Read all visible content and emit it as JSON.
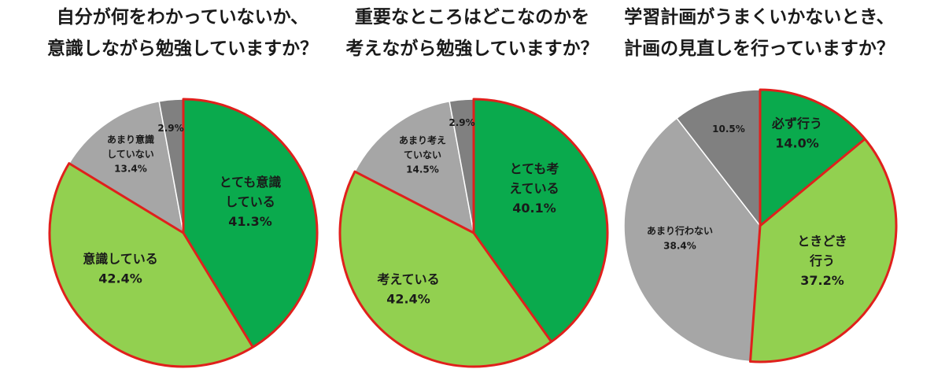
{
  "chart_data": [
    {
      "type": "pie",
      "title": [
        "自分が何をわかっていないか、",
        "意識しながら勉強していますか？"
      ],
      "slices": [
        {
          "label": [
            "とても意識",
            "している"
          ],
          "value": 41.3,
          "value_label": "41.3%",
          "color": "#0aaa4d"
        },
        {
          "label": [
            "意識している"
          ],
          "value": 42.4,
          "value_label": "42.4%",
          "color": "#92d050"
        },
        {
          "label": [
            "あまり意識",
            "していない"
          ],
          "value": 13.4,
          "value_label": "13.4%",
          "color": "#a6a6a6"
        },
        {
          "label": [],
          "value": 2.9,
          "value_label": "2.9%",
          "color": "#808080"
        }
      ],
      "highlight": {
        "color": "#e0201c"
      }
    },
    {
      "type": "pie",
      "title": [
        "重要なところはどこなのかを",
        "考えながら勉強していますか？"
      ],
      "slices": [
        {
          "label": [
            "とても考",
            "えている"
          ],
          "value": 40.1,
          "value_label": "40.1%",
          "color": "#0aaa4d"
        },
        {
          "label": [
            "考えている"
          ],
          "value": 42.4,
          "value_label": "42.4%",
          "color": "#92d050"
        },
        {
          "label": [
            "あまり考え",
            "ていない"
          ],
          "value": 14.5,
          "value_label": "14.5%",
          "color": "#a6a6a6"
        },
        {
          "label": [],
          "value": 2.9,
          "value_label": "2.9%",
          "color": "#808080"
        }
      ],
      "highlight": {
        "color": "#e0201c"
      }
    },
    {
      "type": "pie",
      "title": [
        "学習計画がうまくいかないとき、",
        "計画の見直しを行っていますか？"
      ],
      "slices": [
        {
          "label": [
            "必ず行う"
          ],
          "value": 14.0,
          "value_label": "14.0%",
          "color": "#0aaa4d"
        },
        {
          "label": [
            "ときどき",
            "行う"
          ],
          "value": 37.2,
          "value_label": "37.2%",
          "color": "#92d050"
        },
        {
          "label": [
            "あまり行わない"
          ],
          "value": 38.4,
          "value_label": "38.4%",
          "color": "#a6a6a6"
        },
        {
          "label": [],
          "value": 10.5,
          "value_label": "10.5%",
          "color": "#808080"
        }
      ],
      "highlight": {
        "color": "#e0201c"
      }
    }
  ]
}
